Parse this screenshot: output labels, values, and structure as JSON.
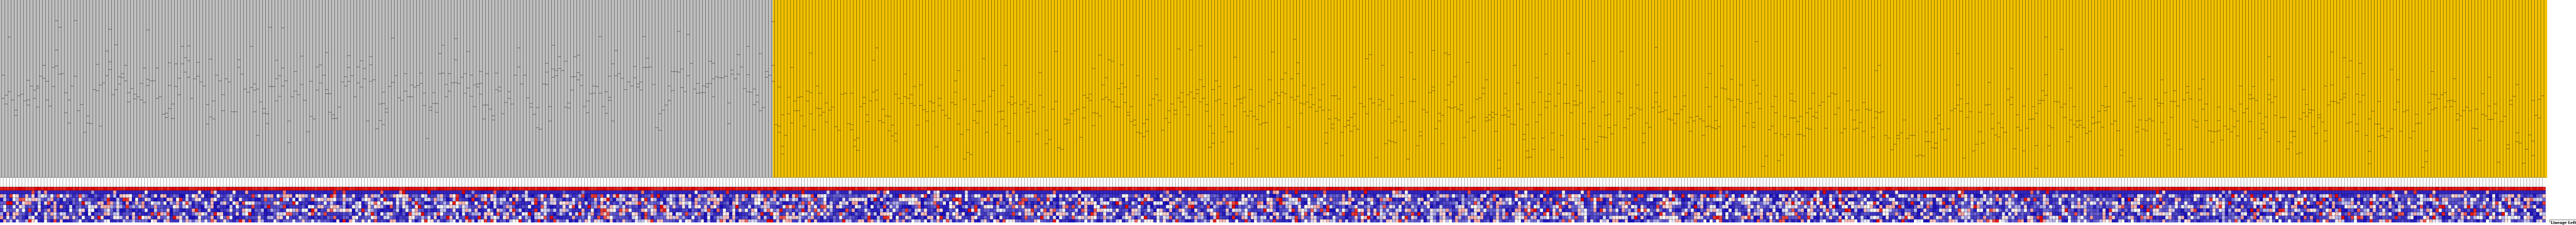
{
  "figure": {
    "type": "cluster-dendrogram-heatmap",
    "clusters": [
      {
        "id": "cluster-gray",
        "color": "#bfbfbf"
      },
      {
        "id": "cluster-gold",
        "color": "#f2c100"
      }
    ],
    "heatmap_palette": {
      "low": "#1a0dbf",
      "mid": "#ffffff",
      "high": "#e00000"
    },
    "legend": {
      "title": "Lineage Leftovers",
      "entries": [
        {
          "label": "",
          "color": "#ffffff"
        },
        {
          "label": "",
          "color": "#ffffff"
        },
        {
          "label": "",
          "color": "#ffffff"
        },
        {
          "label": "",
          "color": "#ffffff"
        }
      ]
    }
  }
}
